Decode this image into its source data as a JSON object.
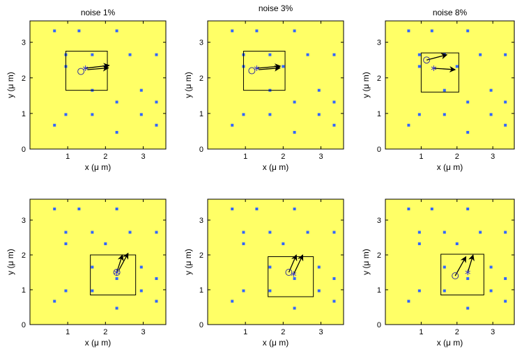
{
  "chart_data": [
    {
      "type": "scatter",
      "title": "noise 1%",
      "xlabel": "x (μ m)",
      "ylabel": "y (μ m)",
      "xlim": [
        0,
        3.6
      ],
      "ylim": [
        0,
        3.6
      ],
      "xticks": [
        "1",
        "2",
        "3"
      ],
      "yticks": [
        "0",
        "1",
        "2",
        "3"
      ],
      "grid": false,
      "background_color": "#ffff66",
      "points": [
        [
          0.65,
          3.32
        ],
        [
          1.3,
          3.32
        ],
        [
          2.3,
          3.32
        ],
        [
          0.95,
          2.65
        ],
        [
          1.65,
          2.65
        ],
        [
          2.65,
          2.65
        ],
        [
          3.35,
          2.65
        ],
        [
          0.95,
          2.32
        ],
        [
          2.0,
          2.32
        ],
        [
          1.65,
          1.65
        ],
        [
          2.95,
          1.65
        ],
        [
          2.3,
          1.32
        ],
        [
          3.35,
          1.32
        ],
        [
          0.95,
          0.97
        ],
        [
          1.65,
          0.97
        ],
        [
          2.95,
          0.97
        ],
        [
          0.65,
          0.67
        ],
        [
          3.35,
          0.67
        ],
        [
          2.3,
          0.47
        ]
      ],
      "marker_color": "#3366ff",
      "estimate_circle": [
        1.35,
        2.18
      ],
      "estimate_star": [
        1.47,
        2.27
      ],
      "arrows": [
        [
          1.47,
          2.27,
          2.1,
          2.35
        ],
        [
          1.52,
          2.23,
          2.08,
          2.28
        ]
      ],
      "box": [
        0.95,
        1.65,
        2.05,
        2.75
      ]
    },
    {
      "type": "scatter",
      "title": "noise 3%",
      "xlabel": "x (μ m)",
      "ylabel": "y (μ m)",
      "xlim": [
        0,
        3.6
      ],
      "ylim": [
        0,
        3.6
      ],
      "xticks": [
        "1",
        "2",
        "3"
      ],
      "yticks": [
        "0",
        "1",
        "2",
        "3"
      ],
      "grid": false,
      "background_color": "#ffff66",
      "points": [
        [
          0.65,
          3.32
        ],
        [
          1.3,
          3.32
        ],
        [
          2.3,
          3.32
        ],
        [
          0.95,
          2.65
        ],
        [
          1.65,
          2.65
        ],
        [
          2.65,
          2.65
        ],
        [
          3.35,
          2.65
        ],
        [
          0.95,
          2.32
        ],
        [
          2.0,
          2.32
        ],
        [
          1.65,
          1.65
        ],
        [
          2.95,
          1.65
        ],
        [
          2.3,
          1.32
        ],
        [
          3.35,
          1.32
        ],
        [
          0.95,
          0.97
        ],
        [
          1.65,
          0.97
        ],
        [
          2.95,
          0.97
        ],
        [
          0.65,
          0.67
        ],
        [
          3.35,
          0.67
        ],
        [
          2.3,
          0.47
        ]
      ],
      "marker_color": "#3366ff",
      "estimate_circle": [
        1.17,
        2.2
      ],
      "estimate_star": [
        1.3,
        2.27
      ],
      "arrows": [
        [
          1.3,
          2.27,
          1.93,
          2.33
        ],
        [
          1.35,
          2.23,
          1.92,
          2.28
        ]
      ],
      "box": [
        0.95,
        1.65,
        2.05,
        2.75
      ]
    },
    {
      "type": "scatter",
      "title": "noise 8%",
      "xlabel": "x (μ m)",
      "ylabel": "y (μ m)",
      "xlim": [
        0,
        3.6
      ],
      "ylim": [
        0,
        3.6
      ],
      "xticks": [
        "1",
        "2",
        "3"
      ],
      "yticks": [
        "0",
        "1",
        "2",
        "3"
      ],
      "grid": false,
      "background_color": "#ffff66",
      "points": [
        [
          0.65,
          3.32
        ],
        [
          1.3,
          3.32
        ],
        [
          2.3,
          3.32
        ],
        [
          0.95,
          2.65
        ],
        [
          1.65,
          2.65
        ],
        [
          2.65,
          2.65
        ],
        [
          3.35,
          2.65
        ],
        [
          0.95,
          2.32
        ],
        [
          2.0,
          2.32
        ],
        [
          1.65,
          1.65
        ],
        [
          2.95,
          1.65
        ],
        [
          2.3,
          1.32
        ],
        [
          3.35,
          1.32
        ],
        [
          0.95,
          0.97
        ],
        [
          1.65,
          0.97
        ],
        [
          2.95,
          0.97
        ],
        [
          0.65,
          0.67
        ],
        [
          3.35,
          0.67
        ],
        [
          2.3,
          0.47
        ]
      ],
      "marker_color": "#3366ff",
      "estimate_circle": [
        1.15,
        2.5
      ],
      "estimate_star": [
        1.35,
        2.27
      ],
      "arrows": [
        [
          1.15,
          2.5,
          1.72,
          2.65
        ],
        [
          1.35,
          2.27,
          1.95,
          2.23
        ]
      ],
      "box": [
        1.0,
        1.6,
        2.05,
        2.7
      ]
    },
    {
      "type": "scatter",
      "title": "",
      "xlabel": "x (μ m)",
      "ylabel": "y (μ m)",
      "xlim": [
        0,
        3.6
      ],
      "ylim": [
        0,
        3.6
      ],
      "xticks": [
        "1",
        "2",
        "3"
      ],
      "yticks": [
        "0",
        "1",
        "2",
        "3"
      ],
      "grid": false,
      "background_color": "#ffff66",
      "points": [
        [
          0.65,
          3.32
        ],
        [
          1.3,
          3.32
        ],
        [
          2.3,
          3.32
        ],
        [
          0.95,
          2.65
        ],
        [
          1.65,
          2.65
        ],
        [
          2.65,
          2.65
        ],
        [
          3.35,
          2.65
        ],
        [
          0.95,
          2.32
        ],
        [
          2.0,
          2.32
        ],
        [
          1.65,
          1.65
        ],
        [
          2.95,
          1.65
        ],
        [
          2.3,
          1.32
        ],
        [
          3.35,
          1.32
        ],
        [
          0.95,
          0.97
        ],
        [
          1.65,
          0.97
        ],
        [
          2.95,
          0.97
        ],
        [
          0.65,
          0.67
        ],
        [
          3.35,
          0.67
        ],
        [
          2.3,
          0.47
        ]
      ],
      "marker_color": "#3366ff",
      "estimate_circle": [
        2.3,
        1.5
      ],
      "estimate_star": [
        2.3,
        1.5
      ],
      "arrows": [
        [
          2.3,
          1.5,
          2.45,
          2.0
        ],
        [
          2.35,
          1.55,
          2.6,
          2.05
        ]
      ],
      "box": [
        1.6,
        0.85,
        2.8,
        2.0
      ]
    },
    {
      "type": "scatter",
      "title": "",
      "xlabel": "x (μ m)",
      "ylabel": "y (μ m)",
      "xlim": [
        0,
        3.6
      ],
      "ylim": [
        0,
        3.6
      ],
      "xticks": [
        "1",
        "2",
        "3"
      ],
      "yticks": [
        "0",
        "1",
        "2",
        "3"
      ],
      "grid": false,
      "background_color": "#ffff66",
      "points": [
        [
          0.65,
          3.32
        ],
        [
          1.3,
          3.32
        ],
        [
          2.3,
          3.32
        ],
        [
          0.95,
          2.65
        ],
        [
          1.65,
          2.65
        ],
        [
          2.65,
          2.65
        ],
        [
          3.35,
          2.65
        ],
        [
          0.95,
          2.32
        ],
        [
          2.0,
          2.32
        ],
        [
          1.65,
          1.65
        ],
        [
          2.95,
          1.65
        ],
        [
          2.3,
          1.32
        ],
        [
          3.35,
          1.32
        ],
        [
          0.95,
          0.97
        ],
        [
          1.65,
          0.97
        ],
        [
          2.95,
          0.97
        ],
        [
          0.65,
          0.67
        ],
        [
          3.35,
          0.67
        ],
        [
          2.3,
          0.47
        ]
      ],
      "marker_color": "#3366ff",
      "estimate_circle": [
        2.15,
        1.5
      ],
      "estimate_star": [
        2.28,
        1.45
      ],
      "arrows": [
        [
          2.15,
          1.5,
          2.35,
          2.0
        ],
        [
          2.28,
          1.45,
          2.52,
          2.0
        ]
      ],
      "box": [
        1.6,
        0.8,
        2.8,
        1.95
      ]
    },
    {
      "type": "scatter",
      "title": "",
      "xlabel": "x (μ m)",
      "ylabel": "y (μ m)",
      "xlim": [
        0,
        3.6
      ],
      "ylim": [
        0,
        3.6
      ],
      "xticks": [
        "1",
        "2",
        "3"
      ],
      "yticks": [
        "0",
        "1",
        "2",
        "3"
      ],
      "grid": false,
      "background_color": "#ffff66",
      "points": [
        [
          0.65,
          3.32
        ],
        [
          1.3,
          3.32
        ],
        [
          2.3,
          3.32
        ],
        [
          0.95,
          2.65
        ],
        [
          1.65,
          2.65
        ],
        [
          2.65,
          2.65
        ],
        [
          3.35,
          2.65
        ],
        [
          0.95,
          2.32
        ],
        [
          2.0,
          2.32
        ],
        [
          1.65,
          1.65
        ],
        [
          2.95,
          1.65
        ],
        [
          2.3,
          1.32
        ],
        [
          3.35,
          1.32
        ],
        [
          0.95,
          0.97
        ],
        [
          1.65,
          0.97
        ],
        [
          2.95,
          0.97
        ],
        [
          0.65,
          0.67
        ],
        [
          3.35,
          0.67
        ],
        [
          2.3,
          0.47
        ]
      ],
      "marker_color": "#3366ff",
      "estimate_circle": [
        1.95,
        1.4
      ],
      "estimate_star": [
        2.3,
        1.5
      ],
      "arrows": [
        [
          1.95,
          1.4,
          2.25,
          1.95
        ],
        [
          2.3,
          1.5,
          2.45,
          2.0
        ]
      ],
      "box": [
        1.55,
        0.85,
        2.75,
        2.02
      ]
    }
  ]
}
